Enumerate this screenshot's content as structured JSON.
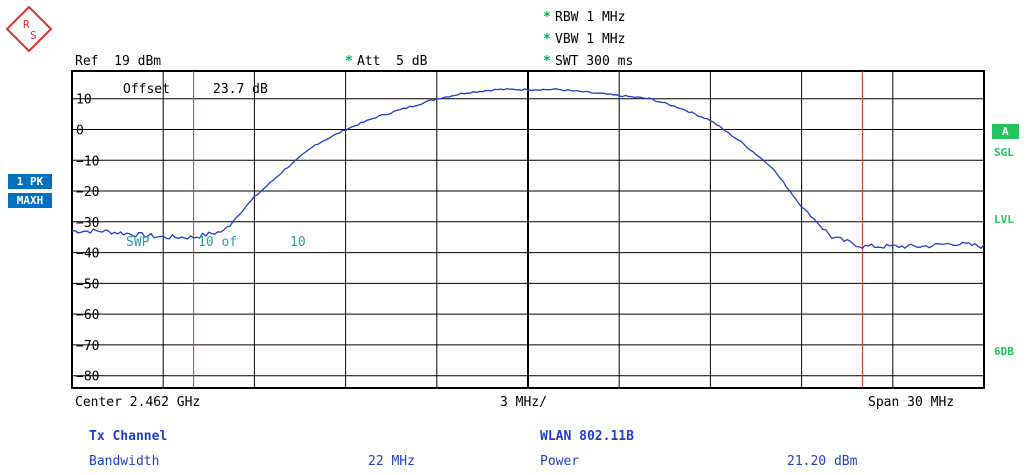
{
  "header": {
    "ref": "Ref  19 dBm",
    "att_star": "*",
    "att": "Att  5 dB",
    "rbw_star": "*",
    "rbw": "RBW 1 MHz",
    "vbw_star": "*",
    "vbw": "VBW 1 MHz",
    "swt_star": "*",
    "swt": "SWT 300 ms"
  },
  "left_tags": [
    "1 PK",
    "MAXH"
  ],
  "right_tags": {
    "a": "A",
    "sgl": "SGL",
    "lvl": "LVL",
    "sixdb": "6DB"
  },
  "overlay": {
    "offset": "Offset",
    "offset_value": "23.7 dB",
    "sweep": "SWP",
    "sweep_count": "10 of",
    "sweep_total": "10"
  },
  "footer": {
    "center": "Center 2.462 GHz",
    "div": "3 MHz/",
    "span": "Span 30 MHz"
  },
  "table": {
    "left_title": "Tx Channel",
    "left_label": "Bandwidth",
    "left_value": "22 MHz",
    "right_title": "WLAN 802.11B",
    "right_label": "Power",
    "right_value": "21.20 dBm"
  },
  "colors": {
    "trace": "#1f3fcf",
    "marker_line": "#e03030",
    "grid": "#000000",
    "status": "#22c55e",
    "tag": "#0070c0"
  },
  "chart_data": {
    "type": "line",
    "y_tick_labels": [
      "10",
      "0",
      "-10",
      "-20",
      "-30",
      "-40",
      "-50",
      "-60",
      "-70",
      "-80"
    ],
    "ylim": [
      -84,
      19
    ],
    "xlim": [
      2.447,
      2.477
    ],
    "x_unit": "GHz",
    "y_unit": "dBm",
    "grid": true,
    "channel_edges_ghz": [
      2.451,
      2.473
    ],
    "series": [
      {
        "x": [
          2.447,
          2.448,
          2.449,
          2.45,
          2.451,
          2.452,
          2.453,
          2.454,
          2.455,
          2.456,
          2.457,
          2.458,
          2.459,
          2.46,
          2.461,
          2.462,
          2.463,
          2.464,
          2.465,
          2.466,
          2.467,
          2.468,
          2.469,
          2.47,
          2.471,
          2.472,
          2.473,
          2.474,
          2.475,
          2.476,
          2.477
        ],
        "values": [
          -33,
          -33,
          -34,
          -35,
          -35,
          -33,
          -22,
          -13,
          -5,
          0,
          4,
          7,
          10,
          12,
          13,
          13,
          13,
          12,
          11,
          10,
          7,
          3,
          -4,
          -12,
          -25,
          -35,
          -38,
          -38,
          -38,
          -37,
          -38
        ]
      }
    ]
  }
}
